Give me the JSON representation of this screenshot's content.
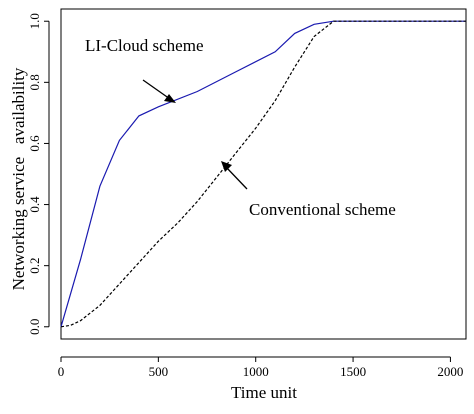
{
  "chart_data": {
    "type": "line",
    "title": "",
    "xlabel": "Time unit",
    "ylabel": "Networking service   availability",
    "xlim": [
      0,
      2080
    ],
    "ylim": [
      -0.04,
      1.04
    ],
    "x_ticks": [
      0,
      500,
      1000,
      1500,
      2000
    ],
    "y_ticks": [
      0.0,
      0.2,
      0.4,
      0.6,
      0.8,
      1.0
    ],
    "x_tick_labels": [
      "0",
      "500",
      "1000",
      "1500",
      "2000"
    ],
    "y_tick_labels": [
      "0.0",
      "0.2",
      "0.4",
      "0.6",
      "0.8",
      "1.0"
    ],
    "grid": false,
    "series": [
      {
        "name": "LI-Cloud scheme",
        "color": "#1a1ab0",
        "line_style": "solid",
        "points": [
          [
            0,
            0
          ],
          [
            100,
            0.22
          ],
          [
            200,
            0.46
          ],
          [
            300,
            0.61
          ],
          [
            400,
            0.69
          ],
          [
            500,
            0.72
          ],
          [
            700,
            0.77
          ],
          [
            900,
            0.835
          ],
          [
            1100,
            0.9
          ],
          [
            1200,
            0.96
          ],
          [
            1300,
            0.99
          ],
          [
            1400,
            1.0
          ],
          [
            2080,
            1.0
          ]
        ]
      },
      {
        "name": "Conventional scheme",
        "color": "#000000",
        "line_style": "dashed",
        "points": [
          [
            0,
            0
          ],
          [
            50,
            0.005
          ],
          [
            100,
            0.02
          ],
          [
            200,
            0.07
          ],
          [
            300,
            0.14
          ],
          [
            400,
            0.21
          ],
          [
            500,
            0.28
          ],
          [
            600,
            0.34
          ],
          [
            700,
            0.41
          ],
          [
            800,
            0.49
          ],
          [
            900,
            0.57
          ],
          [
            1000,
            0.65
          ],
          [
            1100,
            0.74
          ],
          [
            1200,
            0.85
          ],
          [
            1300,
            0.95
          ],
          [
            1400,
            1.0
          ],
          [
            2080,
            1.0
          ]
        ]
      }
    ],
    "annotations": [
      {
        "text": "LI-Cloud scheme",
        "target": [
          530,
          0.74
        ]
      },
      {
        "text": "Conventional scheme",
        "target": [
          770,
          0.54
        ]
      }
    ]
  }
}
